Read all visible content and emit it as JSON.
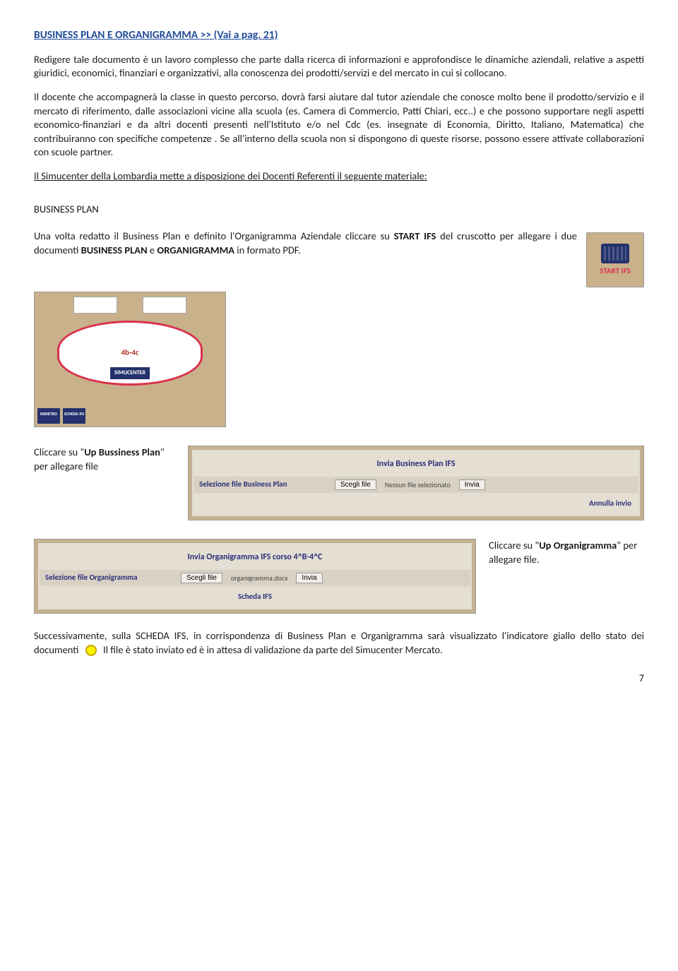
{
  "title_link": "BUSINESS PLAN E ORGANIGRAMMA >> (Vai a pag. 21)",
  "para1": "Redigere tale documento è un lavoro complesso che parte dalla ricerca di informazioni e approfondisce le dinamiche aziendali, relative a aspetti  giuridici, economici,  finanziari e organizzativi, alla conoscenza dei prodotti/servizi e del mercato in cui si collocano.",
  "para2": "Il docente che accompagnerà la classe in questo percorso, dovrà farsi aiutare dal tutor aziendale che conosce molto bene il prodotto/servizio e il mercato di riferimento,  dalle associazioni vicine alla scuola (es. Camera di Commercio, Patti Chiari, ecc..) e che possono supportare negli  aspetti economico-finanziari  e da altri docenti presenti nell'Istituto e/o nel Cdc  (es. insegnate di Economia, Diritto, Italiano, Matematica) che contribuiranno con specifiche competenze . Se all'interno della scuola non si dispongono di queste risorse, possono essere attivate collaborazioni con scuole partner.",
  "para3": "Il Simucenter della Lombardia mette a disposizione dei Docenti Referenti  il seguente materiale:",
  "section_head": "BUSINESS PLAN",
  "start_intro_a": "Una volta redatto il Business Plan e definito l'Organigramma Aziendale cliccare su ",
  "start_bold_a": "START IFS",
  "start_intro_b": " del cruscotto per allegare i due documenti  ",
  "start_bold_b": "BUSINESS PLAN",
  "start_intro_c": " e ",
  "start_bold_c": "ORGANIGRAMMA",
  "start_intro_d": " in formato PDF.",
  "start_badge": {
    "label": "START IFS"
  },
  "process": {
    "step": "4b-4c",
    "simu": "SIMUCENTER",
    "indietro": "INDIETRO",
    "scheda": "SCHEDA IFS"
  },
  "bp_caption_a": "Cliccare su \"",
  "bp_caption_bold": "Up Bussiness Plan",
  "bp_caption_b": "\" per allegare file",
  "bp_panel": {
    "title": "Invia Business Plan IFS",
    "label": "Selezione file Business Plan",
    "btn_scegli": "Scegli file",
    "filename": "Nessun file selezionato",
    "btn_invia": "Invia",
    "foot": "Annulla invio"
  },
  "org_caption_a": "Cliccare su \"",
  "org_caption_bold": "Up Organigramma",
  "org_caption_b": "\" per allegare file.",
  "org_panel": {
    "title": "Invia Organigramma IFS corso  4^B-4^C",
    "label": "Selezione file Organigramma",
    "btn_scegli": "Scegli file",
    "filename": "organigramma.docx",
    "btn_invia": "Invia",
    "foot": "Scheda IFS"
  },
  "final_a": "Successivamente, sulla SCHEDA IFS, in corrispondenza  di Business Plan e Organigramma sarà visualizzato l'indicatore giallo dello stato dei documenti",
  "final_b": "Il file è stato inviato ed è in attesa di validazione da parte del Simucenter Mercato.",
  "page_num": "7"
}
